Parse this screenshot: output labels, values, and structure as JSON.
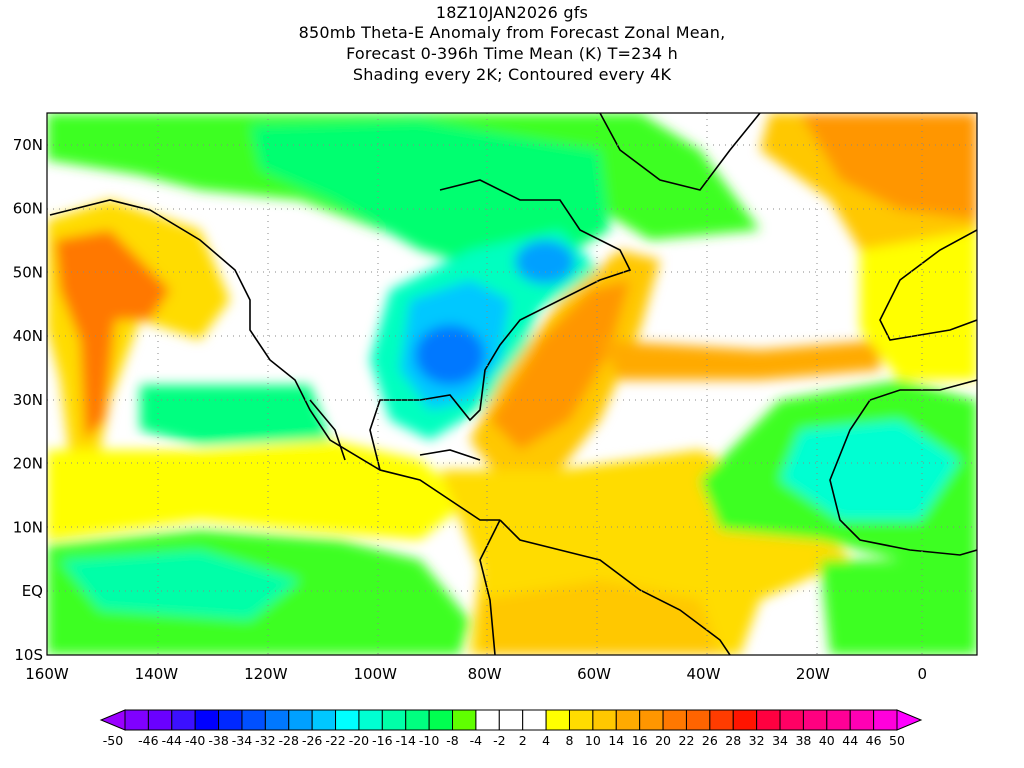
{
  "title": {
    "line1": "18Z10JAN2026 gfs",
    "line2": "850mb Theta-E Anomaly from Forecast Zonal Mean,",
    "line3": "Forecast 0-396h Time Mean (K) T=234 h",
    "line4": "Shading every 2K; Contoured every 4K"
  },
  "axes": {
    "lat_labels": [
      "70N",
      "60N",
      "50N",
      "40N",
      "30N",
      "20N",
      "10N",
      "EQ",
      "10S"
    ],
    "lat_values": [
      70,
      60,
      50,
      40,
      30,
      20,
      10,
      0,
      -10
    ],
    "lon_labels": [
      "160W",
      "140W",
      "120W",
      "100W",
      "80W",
      "60W",
      "40W",
      "20W",
      "0"
    ],
    "lon_values": [
      -160,
      -140,
      -120,
      -100,
      -80,
      -60,
      -40,
      -20,
      0
    ],
    "lon_range": [
      -160,
      10
    ],
    "lat_range": [
      -10,
      75
    ]
  },
  "colorbar": {
    "labels": [
      "-50",
      "-46",
      "-44",
      "-40",
      "-38",
      "-34",
      "-32",
      "-28",
      "-26",
      "-22",
      "-20",
      "-16",
      "-14",
      "-10",
      "-8",
      "-4",
      "-2",
      "2",
      "4",
      "8",
      "10",
      "14",
      "16",
      "20",
      "22",
      "26",
      "28",
      "32",
      "34",
      "38",
      "40",
      "44",
      "46",
      "50"
    ],
    "colors": [
      "#8000ff",
      "#6a00ff",
      "#3c10ff",
      "#0000ff",
      "#0028ff",
      "#0050ff",
      "#0078ff",
      "#00a0ff",
      "#00c8ff",
      "#00ffff",
      "#00ffd2",
      "#00ffa8",
      "#00ff80",
      "#00ff50",
      "#60ff00",
      "#ffffff",
      "#ffffff",
      "#ffffff",
      "#ffff00",
      "#ffdc00",
      "#ffc800",
      "#ffaa00",
      "#ff9600",
      "#ff7800",
      "#ff6400",
      "#ff3c00",
      "#ff1400",
      "#ff0040",
      "#ff0064",
      "#ff0080",
      "#ff0096",
      "#ff00b4",
      "#ff00dc"
    ],
    "low_arrow_color": "#9a00ff",
    "high_arrow_color": "#ff00ff"
  }
}
